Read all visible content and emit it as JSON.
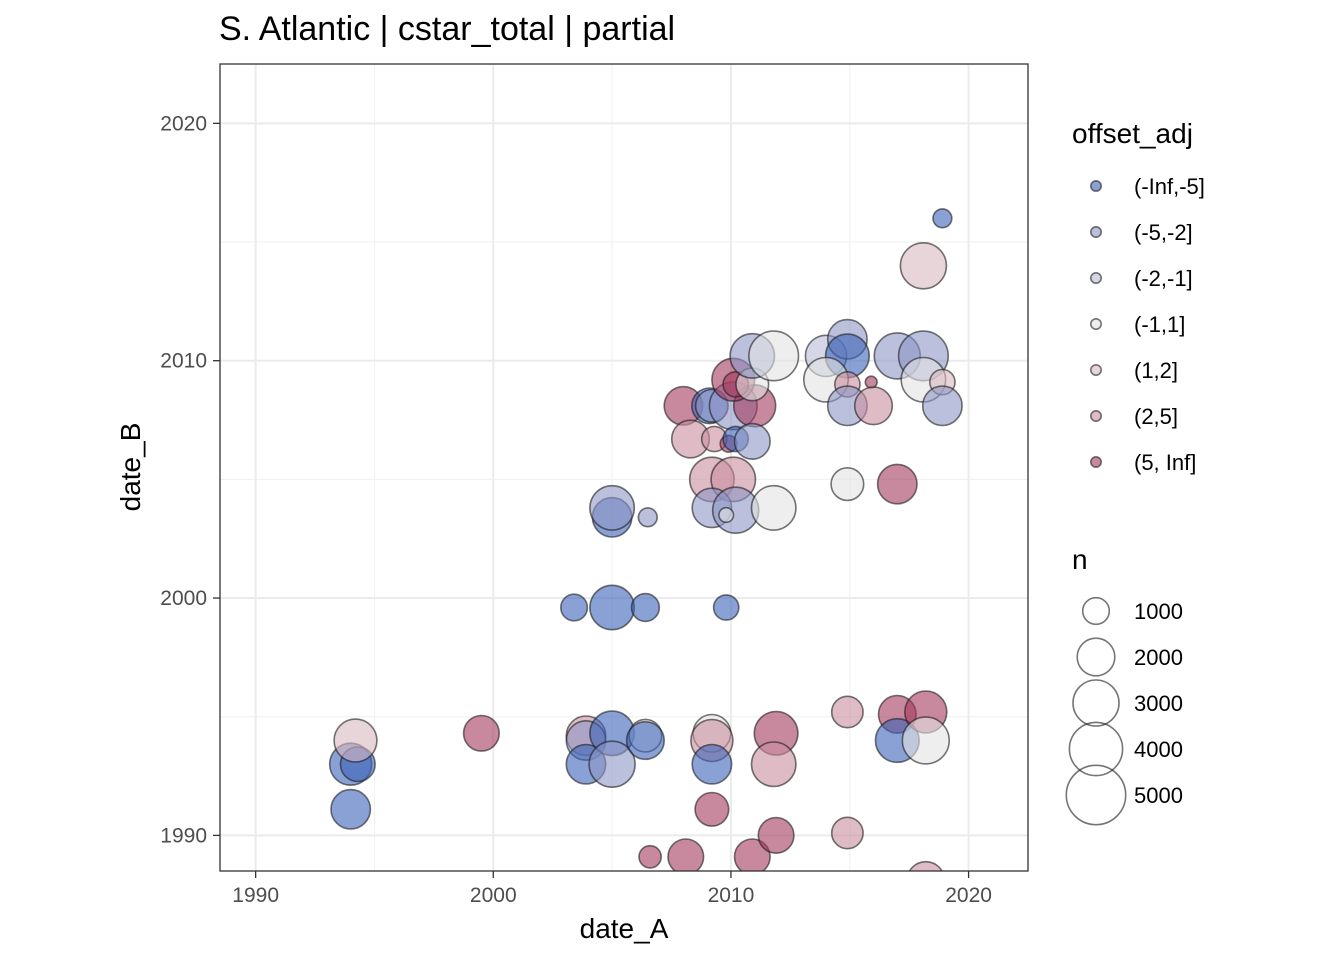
{
  "chart_data": {
    "type": "scatter",
    "title": "S. Atlantic | cstar_total | partial",
    "xlabel": "date_A",
    "ylabel": "date_B",
    "xlim": [
      1988.5,
      2022.5
    ],
    "ylim": [
      1988.5,
      2022.5
    ],
    "x_ticks": [
      1990,
      2000,
      2010,
      2020
    ],
    "y_ticks": [
      1990,
      2000,
      2010,
      2020
    ],
    "grid": true,
    "legend_position": "right",
    "color_legend": {
      "title": "offset_adj",
      "categories": [
        "(-Inf,-5]",
        "(-5,-2]",
        "(-2,-1]",
        "(-1,1]",
        "(1,2]",
        "(2,5]",
        "(5, Inf]"
      ],
      "colors": [
        "#3b62b8",
        "#8d96c6",
        "#b9bdd6",
        "#e2e2e2",
        "#d9b9c1",
        "#c98ea0",
        "#a4395e"
      ]
    },
    "size_legend": {
      "title": "n",
      "values": [
        1000,
        2000,
        3000,
        4000,
        5000
      ]
    },
    "points": [
      {
        "x": 1994.0,
        "y": 1993.0,
        "n": 2500,
        "cat": "(-Inf,-5]"
      },
      {
        "x": 1994.3,
        "y": 1993.0,
        "n": 1700,
        "cat": "(-Inf,-5]"
      },
      {
        "x": 1994.0,
        "y": 1991.1,
        "n": 2200,
        "cat": "(-Inf,-5]"
      },
      {
        "x": 1994.2,
        "y": 1994.0,
        "n": 2600,
        "cat": "(1,2]"
      },
      {
        "x": 1999.5,
        "y": 1994.3,
        "n": 1800,
        "cat": "(5, Inf]"
      },
      {
        "x": 2003.4,
        "y": 1999.6,
        "n": 1000,
        "cat": "(-Inf,-5]"
      },
      {
        "x": 2005.0,
        "y": 1999.6,
        "n": 2800,
        "cat": "(-Inf,-5]"
      },
      {
        "x": 2006.4,
        "y": 1999.6,
        "n": 1100,
        "cat": "(-Inf,-5]"
      },
      {
        "x": 2009.8,
        "y": 1999.6,
        "n": 900,
        "cat": "(-Inf,-5]"
      },
      {
        "x": 2005.0,
        "y": 2003.4,
        "n": 2200,
        "cat": "(-Inf,-5]"
      },
      {
        "x": 2005.0,
        "y": 2003.8,
        "n": 2800,
        "cat": "(-5,-2]"
      },
      {
        "x": 2006.5,
        "y": 2003.4,
        "n": 500,
        "cat": "(-5,-2]"
      },
      {
        "x": 2003.9,
        "y": 1994.2,
        "n": 2200,
        "cat": "(2,5]"
      },
      {
        "x": 2003.9,
        "y": 1994.0,
        "n": 2200,
        "cat": "(-5,-2]"
      },
      {
        "x": 2003.9,
        "y": 1993.0,
        "n": 2200,
        "cat": "(-Inf,-5]"
      },
      {
        "x": 2005.0,
        "y": 1994.3,
        "n": 2800,
        "cat": "(-Inf,-5]"
      },
      {
        "x": 2005.0,
        "y": 1993.0,
        "n": 3000,
        "cat": "(-5,-2]"
      },
      {
        "x": 2006.4,
        "y": 1994.2,
        "n": 1500,
        "cat": "(-1,1]"
      },
      {
        "x": 2006.4,
        "y": 1994.0,
        "n": 2000,
        "cat": "(-Inf,-5]"
      },
      {
        "x": 2006.6,
        "y": 1989.1,
        "n": 700,
        "cat": "(5, Inf]"
      },
      {
        "x": 2008.1,
        "y": 1989.1,
        "n": 1800,
        "cat": "(5, Inf]"
      },
      {
        "x": 2009.2,
        "y": 1994.3,
        "n": 2000,
        "cat": "(-1,1]"
      },
      {
        "x": 2009.2,
        "y": 1994.0,
        "n": 2500,
        "cat": "(2,5]"
      },
      {
        "x": 2009.2,
        "y": 1993.0,
        "n": 2200,
        "cat": "(-Inf,-5]"
      },
      {
        "x": 2009.2,
        "y": 1991.1,
        "n": 1600,
        "cat": "(5, Inf]"
      },
      {
        "x": 2010.9,
        "y": 1989.1,
        "n": 1800,
        "cat": "(5, Inf]"
      },
      {
        "x": 2011.9,
        "y": 1994.3,
        "n": 2700,
        "cat": "(5, Inf]"
      },
      {
        "x": 2011.8,
        "y": 1993.0,
        "n": 2800,
        "cat": "(2,5]"
      },
      {
        "x": 2011.9,
        "y": 1990.0,
        "n": 1800,
        "cat": "(5, Inf]"
      },
      {
        "x": 2014.9,
        "y": 1995.2,
        "n": 1400,
        "cat": "(2,5]"
      },
      {
        "x": 2014.9,
        "y": 1990.1,
        "n": 1400,
        "cat": "(2,5]"
      },
      {
        "x": 2017.0,
        "y": 1995.1,
        "n": 2000,
        "cat": "(5, Inf]"
      },
      {
        "x": 2017.0,
        "y": 1994.0,
        "n": 2700,
        "cat": "(-Inf,-5]"
      },
      {
        "x": 2018.2,
        "y": 1995.2,
        "n": 2500,
        "cat": "(5, Inf]"
      },
      {
        "x": 2018.2,
        "y": 1994.0,
        "n": 3100,
        "cat": "(-1,1]"
      },
      {
        "x": 2018.2,
        "y": 1988.1,
        "n": 2000,
        "cat": "(2,5]"
      },
      {
        "x": 2008.0,
        "y": 2008.1,
        "n": 2100,
        "cat": "(5, Inf]"
      },
      {
        "x": 2009.1,
        "y": 2008.1,
        "n": 1800,
        "cat": "(-Inf,-5]"
      },
      {
        "x": 2009.2,
        "y": 2008.1,
        "n": 1500,
        "cat": "(-5,-2]"
      },
      {
        "x": 2010.1,
        "y": 2008.1,
        "n": 3200,
        "cat": "(-5,-2]"
      },
      {
        "x": 2011.0,
        "y": 2008.1,
        "n": 2500,
        "cat": "(5, Inf]"
      },
      {
        "x": 2008.3,
        "y": 2006.7,
        "n": 2000,
        "cat": "(2,5]"
      },
      {
        "x": 2009.3,
        "y": 2006.7,
        "n": 900,
        "cat": "(2,5]"
      },
      {
        "x": 2009.9,
        "y": 2006.5,
        "n": 400,
        "cat": "(5, Inf]"
      },
      {
        "x": 2010.2,
        "y": 2006.7,
        "n": 900,
        "cat": "(-Inf,-5]"
      },
      {
        "x": 2010.9,
        "y": 2006.6,
        "n": 1800,
        "cat": "(-5,-2]"
      },
      {
        "x": 2009.2,
        "y": 2005.0,
        "n": 2800,
        "cat": "(2,5]"
      },
      {
        "x": 2010.1,
        "y": 2005.0,
        "n": 2800,
        "cat": "(2,5]"
      },
      {
        "x": 2009.2,
        "y": 2003.8,
        "n": 2200,
        "cat": "(-5,-2]"
      },
      {
        "x": 2010.2,
        "y": 2003.7,
        "n": 3000,
        "cat": "(-5,-2]"
      },
      {
        "x": 2009.8,
        "y": 2003.5,
        "n": 300,
        "cat": "(-1,1]"
      },
      {
        "x": 2011.8,
        "y": 2003.8,
        "n": 2800,
        "cat": "(-1,1]"
      },
      {
        "x": 2010.1,
        "y": 2009.2,
        "n": 2600,
        "cat": "(5, Inf]"
      },
      {
        "x": 2010.2,
        "y": 2009.0,
        "n": 900,
        "cat": "(5, Inf]"
      },
      {
        "x": 2010.9,
        "y": 2009.0,
        "n": 1500,
        "cat": "(-1,1]"
      },
      {
        "x": 2010.9,
        "y": 2010.2,
        "n": 2800,
        "cat": "(-5,-2]"
      },
      {
        "x": 2011.8,
        "y": 2010.2,
        "n": 3500,
        "cat": "(-1,1]"
      },
      {
        "x": 2014.0,
        "y": 2010.2,
        "n": 2400,
        "cat": "(-2,-1]"
      },
      {
        "x": 2014.9,
        "y": 2010.9,
        "n": 2200,
        "cat": "(-5,-2]"
      },
      {
        "x": 2014.9,
        "y": 2010.2,
        "n": 2700,
        "cat": "(-Inf,-5]"
      },
      {
        "x": 2014.0,
        "y": 2009.2,
        "n": 2800,
        "cat": "(-1,1]"
      },
      {
        "x": 2014.9,
        "y": 2009.0,
        "n": 900,
        "cat": "(2,5]"
      },
      {
        "x": 2015.9,
        "y": 2009.1,
        "n": 200,
        "cat": "(5, Inf]"
      },
      {
        "x": 2014.9,
        "y": 2008.1,
        "n": 2200,
        "cat": "(-5,-2]"
      },
      {
        "x": 2016.0,
        "y": 2008.1,
        "n": 2000,
        "cat": "(2,5]"
      },
      {
        "x": 2017.0,
        "y": 2010.2,
        "n": 3000,
        "cat": "(-5,-2]"
      },
      {
        "x": 2018.1,
        "y": 2010.2,
        "n": 3500,
        "cat": "(-5,-2]"
      },
      {
        "x": 2018.1,
        "y": 2009.2,
        "n": 2800,
        "cat": "(-1,1]"
      },
      {
        "x": 2018.9,
        "y": 2009.1,
        "n": 900,
        "cat": "(1,2]"
      },
      {
        "x": 2018.9,
        "y": 2008.1,
        "n": 2200,
        "cat": "(-5,-2]"
      },
      {
        "x": 2014.9,
        "y": 2004.8,
        "n": 1500,
        "cat": "(-1,1]"
      },
      {
        "x": 2017.0,
        "y": 2004.8,
        "n": 2200,
        "cat": "(5, Inf]"
      },
      {
        "x": 2018.1,
        "y": 2014.0,
        "n": 3000,
        "cat": "(1,2]"
      },
      {
        "x": 2018.9,
        "y": 2016.0,
        "n": 500,
        "cat": "(-Inf,-5]"
      }
    ]
  }
}
